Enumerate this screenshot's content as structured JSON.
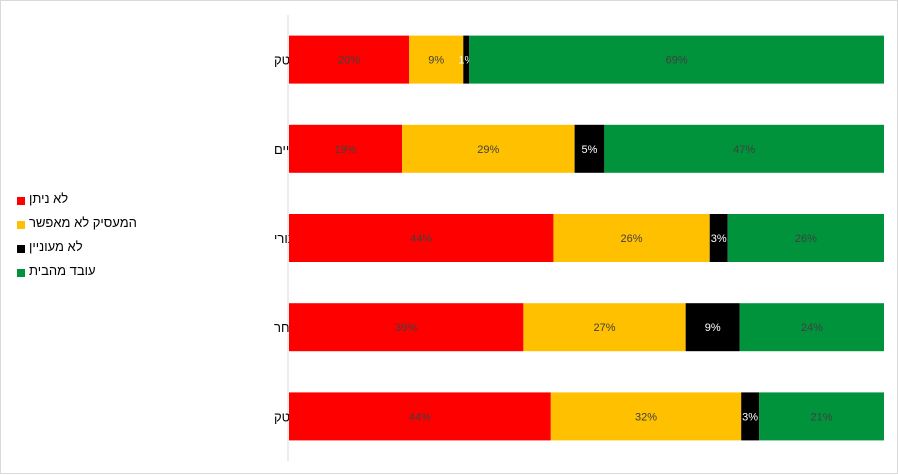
{
  "chart_data": {
    "type": "bar",
    "orientation": "horizontal",
    "stacked": "percent",
    "categories": [
      "ענפי היי-טק",
      "שירותים עסקיים",
      "השירות הציבורי",
      "מסחר",
      "תעשייה - שאינה היי-טק"
    ],
    "series": [
      {
        "name": "לא ניתן",
        "color": "#ff0000",
        "values": [
          20,
          19,
          44,
          39,
          44
        ],
        "labels": [
          "20%",
          "19%",
          "44%",
          "39%",
          "44%"
        ]
      },
      {
        "name": "המעסיק לא מאפשר",
        "color": "#ffc000",
        "values": [
          9,
          29,
          26,
          27,
          32
        ],
        "labels": [
          "9%",
          "29%",
          "26%",
          "27%",
          "32%"
        ]
      },
      {
        "name": "לא מעוניין",
        "color": "#000000",
        "values": [
          1,
          5,
          3,
          9,
          3
        ],
        "labels": [
          "1%",
          "5%",
          "3%",
          "9%",
          "3%"
        ]
      },
      {
        "name": "עובד מהבית",
        "color": "#00933c",
        "values": [
          69,
          47,
          26,
          24,
          21
        ],
        "labels": [
          "69%",
          "47%",
          "26%",
          "24%",
          "21%"
        ]
      }
    ],
    "legend_position": "left",
    "grid": false
  }
}
